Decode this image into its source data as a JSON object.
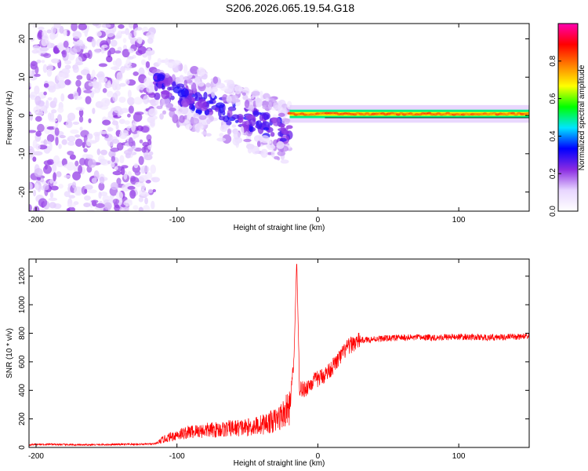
{
  "title": "S206.2026.065.19.54.G18",
  "chart_data": [
    {
      "type": "heatmap",
      "xlabel": "Height of straight line (km)",
      "ylabel": "Frequency (Hz)",
      "xlim": [
        -205,
        150
      ],
      "ylim": [
        -25,
        24
      ],
      "xticks": [
        -200,
        -100,
        0,
        100
      ],
      "yticks": [
        -20,
        -10,
        0,
        10,
        20
      ],
      "colorbar": {
        "label": "Normalized spectral amplitude",
        "range": [
          0,
          1
        ],
        "ticks": [
          "0.0",
          "0.2",
          "0.4",
          "0.6",
          "0.8"
        ],
        "tick_values": [
          0.0,
          0.2,
          0.4,
          0.6,
          0.8
        ],
        "colormap": [
          "#ffffff",
          "#e8d6ff",
          "#8a2be2",
          "#0000ff",
          "#00e5ff",
          "#00ff00",
          "#ffff00",
          "#ff8000",
          "#ff0000",
          "#ff00b0"
        ]
      },
      "regions": [
        {
          "name": "noise",
          "x_range": [
            -205,
            -115
          ],
          "freq_range": [
            -25,
            24
          ],
          "amplitude": 0.08
        },
        {
          "name": "transition",
          "x_range": [
            -115,
            -20
          ],
          "freq_center_start": 8,
          "freq_center_end": -5,
          "amplitude": 0.18
        },
        {
          "name": "line",
          "x_range": [
            -20,
            150
          ],
          "freq_center": 0.4,
          "amplitude": 0.85
        }
      ],
      "grid": false
    },
    {
      "type": "line",
      "xlabel": "Height of straight line (km)",
      "ylabel": "SNR (10 * v/v)",
      "xlim": [
        -205,
        150
      ],
      "ylim": [
        0,
        1320
      ],
      "xticks": [
        -200,
        -100,
        0,
        100
      ],
      "yticks": [
        0,
        200,
        400,
        600,
        800,
        1000,
        1200
      ],
      "color": "#ff0000",
      "x": [
        -205,
        -190,
        -170,
        -150,
        -130,
        -115,
        -110,
        -100,
        -90,
        -80,
        -70,
        -60,
        -50,
        -40,
        -30,
        -25,
        -20,
        -17,
        -15,
        -13,
        -10,
        -5,
        0,
        5,
        10,
        15,
        20,
        25,
        30,
        40,
        50,
        60,
        80,
        100,
        120,
        140,
        150
      ],
      "y": [
        20,
        22,
        18,
        20,
        22,
        25,
        55,
        90,
        110,
        120,
        125,
        135,
        140,
        160,
        190,
        230,
        280,
        600,
        1320,
        420,
        400,
        450,
        480,
        510,
        560,
        620,
        690,
        730,
        750,
        760,
        765,
        770,
        770,
        775,
        770,
        775,
        780
      ],
      "grid": false
    }
  ]
}
